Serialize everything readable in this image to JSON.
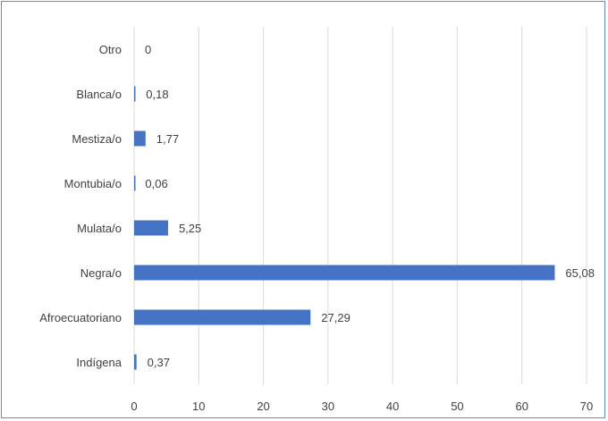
{
  "chart_data": {
    "type": "bar",
    "orientation": "horizontal",
    "categories": [
      "Otro",
      "Blanca/o",
      "Mestiza/o",
      "Montubia/o",
      "Mulata/o",
      "Negra/o",
      "Afroecuatoriano",
      "Indígena"
    ],
    "values": [
      0,
      0.18,
      1.77,
      0.06,
      5.25,
      65.08,
      27.29,
      0.37
    ],
    "data_labels": [
      "0",
      "0,18",
      "1,77",
      "0,06",
      "5,25",
      "65,08",
      "27,29",
      "0,37"
    ],
    "xlim": [
      0,
      70
    ],
    "x_ticks": [
      0,
      10,
      20,
      30,
      40,
      50,
      60,
      70
    ],
    "title": "",
    "xlabel": "",
    "ylabel": "",
    "grid": "vertical",
    "legend": "none",
    "bar_color": "#4472c4",
    "grid_color": "#d9d9d9",
    "border_color": "#5b8fd1"
  }
}
